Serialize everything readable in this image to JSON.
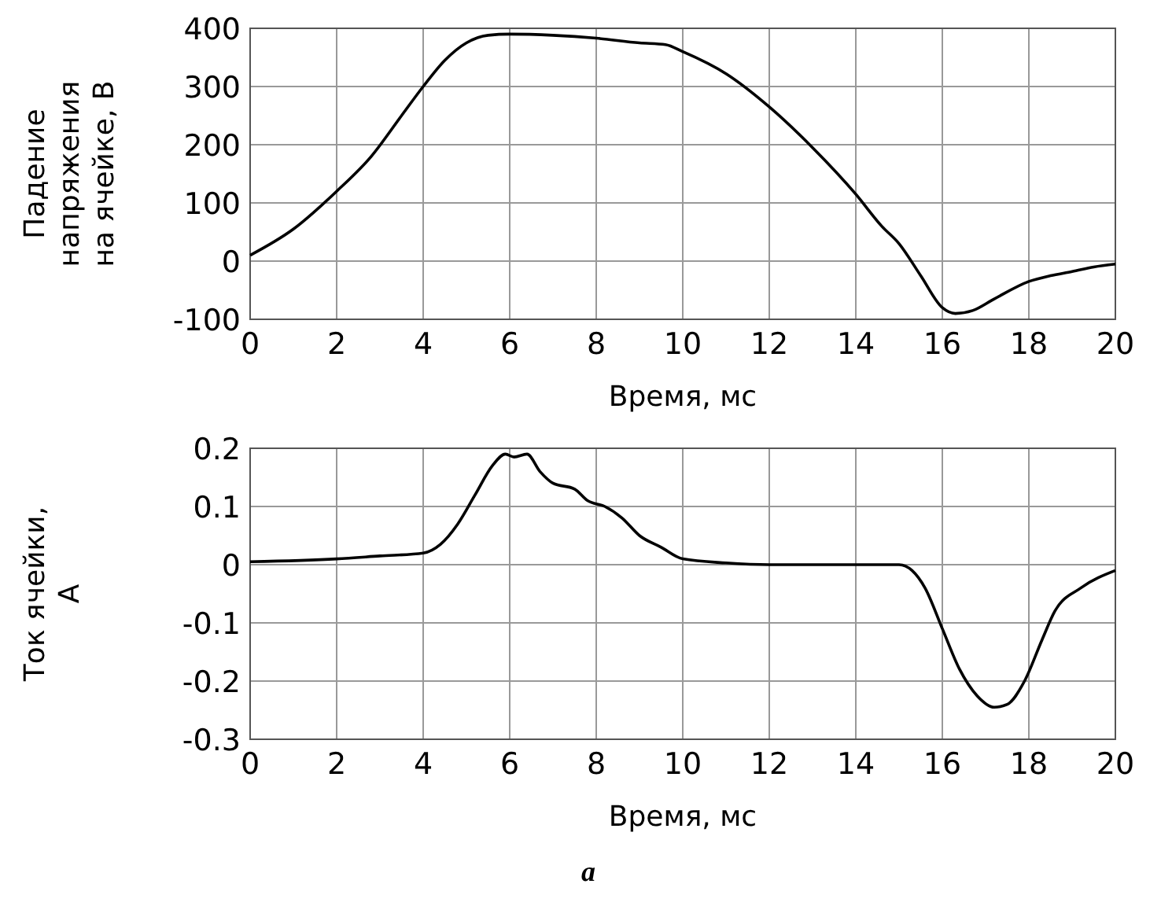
{
  "chart_data": [
    {
      "type": "line",
      "xlabel": "Время, мс",
      "ylabel": "Падение напряжения на ячейке, В",
      "xlim": [
        0,
        20
      ],
      "ylim": [
        -100,
        400
      ],
      "xticks": [
        0,
        2,
        4,
        6,
        8,
        10,
        12,
        14,
        16,
        18,
        20
      ],
      "yticks": [
        -100,
        0,
        100,
        200,
        300,
        400
      ],
      "grid": true,
      "series": [
        {
          "color": "#000000",
          "x": [
            0,
            1,
            2,
            2.8,
            3.5,
            4,
            4.5,
            5,
            5.5,
            6,
            7,
            8,
            9,
            9.6,
            10,
            11,
            12,
            13,
            14,
            14.6,
            15,
            15.5,
            16,
            16.3,
            16.7,
            17.2,
            18,
            18.5,
            19,
            19.5,
            20
          ],
          "values": [
            10,
            55,
            120,
            180,
            250,
            300,
            345,
            375,
            388,
            390,
            388,
            383,
            375,
            372,
            360,
            322,
            265,
            195,
            115,
            60,
            30,
            -25,
            -80,
            -90,
            -85,
            -65,
            -35,
            -25,
            -18,
            -10,
            -5
          ]
        }
      ]
    },
    {
      "type": "line",
      "xlabel": "Время, мс",
      "ylabel": "Ток ячейки, А",
      "xlim": [
        0,
        20
      ],
      "ylim": [
        -0.3,
        0.2
      ],
      "xticks": [
        0,
        2,
        4,
        6,
        8,
        10,
        12,
        14,
        16,
        18,
        20
      ],
      "yticks": [
        -0.3,
        -0.2,
        -0.1,
        0,
        0.1,
        0.2
      ],
      "grid": true,
      "annotations": [
        "a"
      ],
      "series": [
        {
          "color": "#000000",
          "x": [
            0,
            2,
            3,
            4,
            4.4,
            4.8,
            5.2,
            5.6,
            5.9,
            6.1,
            6.4,
            6.7,
            7,
            7.5,
            7.8,
            8.2,
            8.6,
            9,
            9.5,
            10,
            11,
            12,
            14,
            15,
            15.3,
            15.6,
            16,
            16.4,
            16.8,
            17.2,
            17.5,
            17.9,
            18.3,
            18.6,
            19.2,
            20
          ],
          "values": [
            0.005,
            0.01,
            0.015,
            0.02,
            0.035,
            0.07,
            0.12,
            0.17,
            0.19,
            0.185,
            0.19,
            0.16,
            0.14,
            0.13,
            0.11,
            0.1,
            0.08,
            0.05,
            0.03,
            0.01,
            0.003,
            0,
            0,
            0,
            -0.01,
            -0.04,
            -0.11,
            -0.18,
            -0.225,
            -0.245,
            -0.24,
            -0.2,
            -0.13,
            -0.08,
            -0.04,
            -0.01
          ]
        }
      ]
    }
  ]
}
